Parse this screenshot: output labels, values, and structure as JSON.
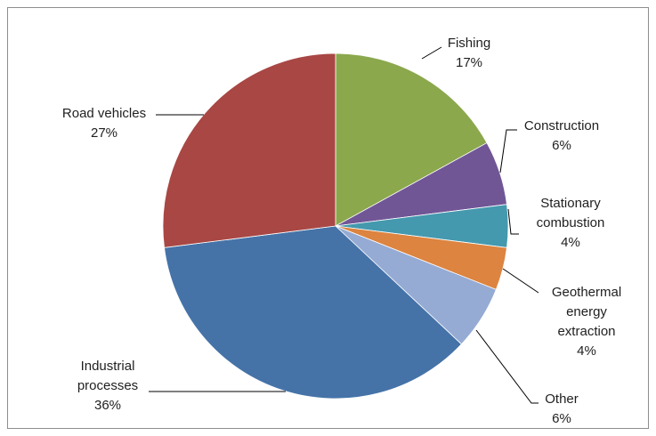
{
  "chart_data": {
    "type": "pie",
    "title": "",
    "slices": [
      {
        "label": "Fishing",
        "value": 17,
        "value_label": "17%",
        "color": "#8BA84D"
      },
      {
        "label": "Construction",
        "value": 6,
        "value_label": "6%",
        "color": "#715696"
      },
      {
        "label": "Stationary combustion",
        "value": 4,
        "value_label": "4%",
        "color": "#4499AE"
      },
      {
        "label": "Geothermal energy extraction",
        "value": 4,
        "value_label": "4%",
        "color": "#DC8440"
      },
      {
        "label": "Other",
        "value": 6,
        "value_label": "6%",
        "color": "#95ABD4"
      },
      {
        "label": "Industrial processes",
        "value": 36,
        "value_label": "36%",
        "color": "#4573A8"
      },
      {
        "label": "Road vehicles",
        "value": 27,
        "value_label": "27%",
        "color": "#A84744"
      }
    ],
    "legend": "none",
    "data_labels": "outside with leader lines"
  }
}
